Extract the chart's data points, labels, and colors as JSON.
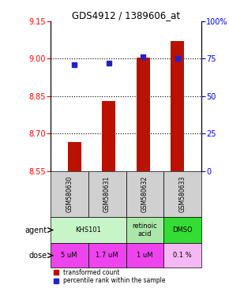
{
  "title": "GDS4912 / 1389606_at",
  "samples": [
    "GSM580630",
    "GSM580631",
    "GSM580632",
    "GSM580633"
  ],
  "bar_values": [
    8.665,
    8.83,
    9.005,
    9.07
  ],
  "dot_values": [
    71,
    72,
    76,
    75
  ],
  "ylim_left": [
    8.55,
    9.15
  ],
  "ylim_right": [
    0,
    100
  ],
  "yticks_left": [
    8.55,
    8.7,
    8.85,
    9.0,
    9.15
  ],
  "yticks_right": [
    0,
    25,
    50,
    75,
    100
  ],
  "ytick_labels_right": [
    "0",
    "25",
    "50",
    "75",
    "100%"
  ],
  "bar_color": "#bb1100",
  "dot_color": "#2222cc",
  "dose_labels": [
    "5 uM",
    "1.7 uM",
    "1 uM",
    "0.1 %"
  ],
  "agent_data": [
    [
      0,
      2,
      "KHS101",
      "#c8f5c8"
    ],
    [
      2,
      3,
      "retinoic\nacid",
      "#aae8aa"
    ],
    [
      3,
      4,
      "DMSO",
      "#33dd33"
    ]
  ],
  "dose_colors": [
    "#ee44ee",
    "#ee44ee",
    "#ee44ee",
    "#f5b8f5"
  ],
  "sample_bg": "#d0d0d0",
  "legend_bar": "transformed count",
  "legend_dot": "percentile rank within the sample",
  "hlines": [
    9.0,
    8.85,
    8.7
  ],
  "bar_baseline": 8.55
}
